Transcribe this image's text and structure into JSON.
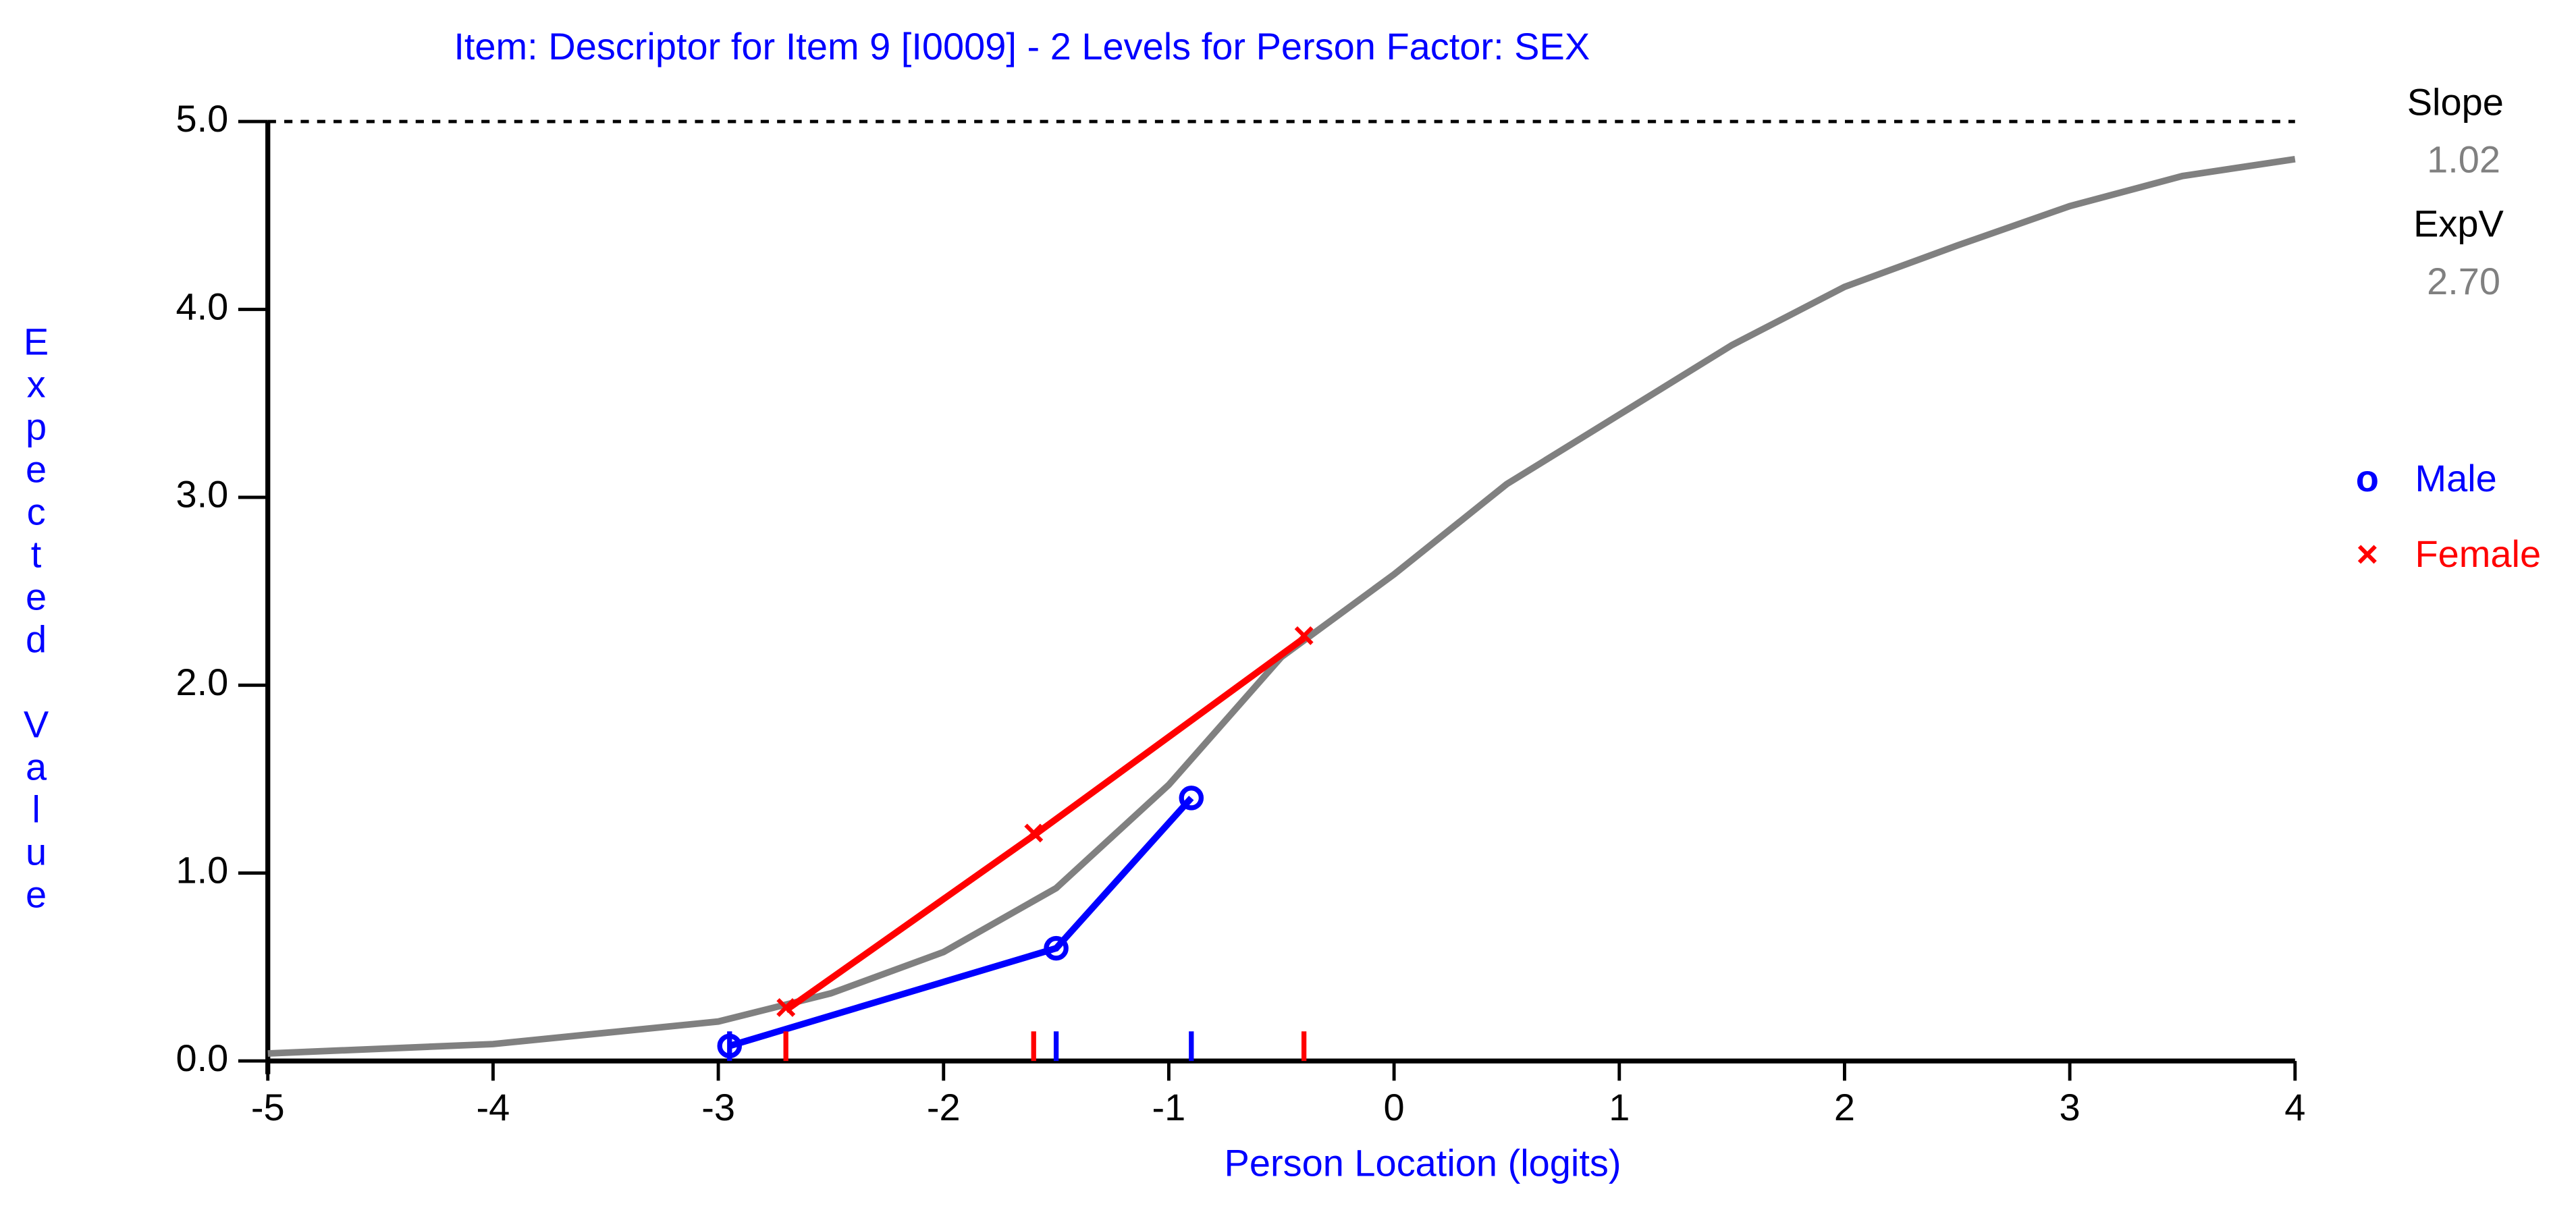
{
  "chart_data": {
    "type": "line",
    "title": "Item: Descriptor for Item 9 [I0009] - 2 Levels for Person Factor: SEX",
    "x_label": "Person Location (logits)",
    "y_label": "Expected Value",
    "xlim": [
      -5,
      4
    ],
    "xticks": [
      -5,
      -4,
      -3,
      -2,
      -1,
      0,
      1,
      2,
      3,
      4
    ],
    "ylim": [
      0,
      5
    ],
    "yticks": [
      {
        "value": 0,
        "label": "0.0"
      },
      {
        "value": 1,
        "label": "1.0"
      },
      {
        "value": 2,
        "label": "2.0"
      },
      {
        "value": 3,
        "label": "3.0"
      },
      {
        "value": 4,
        "label": "4.0"
      },
      {
        "value": 5,
        "label": "5.0"
      }
    ],
    "curve": {
      "color": "#808080",
      "x": [
        -5,
        -4,
        -3,
        -2.5,
        -2,
        -1.5,
        -1,
        -0.5,
        0,
        0.5,
        1,
        1.5,
        2,
        2.5,
        3,
        3.5,
        4
      ],
      "values": [
        0.04,
        0.09,
        0.21,
        0.36,
        0.58,
        0.92,
        1.47,
        2.15,
        2.59,
        3.07,
        3.44,
        3.81,
        4.12,
        4.34,
        4.55,
        4.71,
        4.8
      ]
    },
    "series": [
      {
        "name": "Male",
        "color": "#0000ff",
        "marker": "o",
        "x": [
          -2.95,
          -1.5,
          -0.9
        ],
        "values": [
          0.08,
          0.6,
          1.4
        ]
      },
      {
        "name": "Female",
        "color": "#ff0000",
        "marker": "×",
        "x": [
          -2.7,
          -1.6,
          -0.4
        ],
        "values": [
          0.27,
          1.2,
          2.25
        ]
      }
    ],
    "stats": [
      {
        "label": "Slope",
        "value": "1.02"
      },
      {
        "label": "ExpV",
        "value": "2.70"
      }
    ]
  }
}
